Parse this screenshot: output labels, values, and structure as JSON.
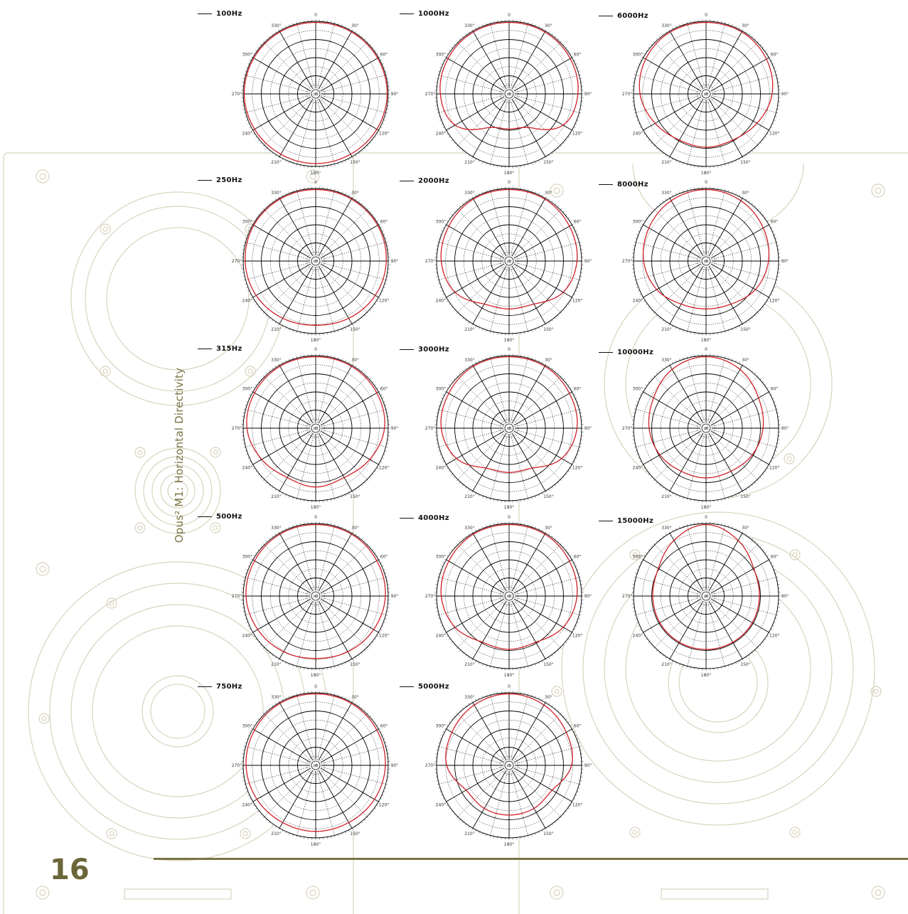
{
  "document": {
    "side_title": "Opus² M1: Horizontal Directivity",
    "page_number": "16"
  },
  "colors": {
    "response_curve": "#d0202a",
    "grid": "#000000",
    "background_drawing": "#d8d3bd",
    "accent": "#7a7445"
  },
  "polar_axis": {
    "angle_labels": [
      "0",
      "30°",
      "60°",
      "90°",
      "120°",
      "150°",
      "180°",
      "210°",
      "240°",
      "270°",
      "300°",
      "330°"
    ],
    "center_label": "dB"
  },
  "plots": [
    {
      "label": "100Hz"
    },
    {
      "label": "250Hz"
    },
    {
      "label": "315Hz"
    },
    {
      "label": "500Hz"
    },
    {
      "label": "750Hz"
    },
    {
      "label": "1000Hz"
    },
    {
      "label": "2000Hz"
    },
    {
      "label": "3000Hz"
    },
    {
      "label": "4000Hz"
    },
    {
      "label": "5000Hz"
    },
    {
      "label": "6000Hz"
    },
    {
      "label": "8000Hz"
    },
    {
      "label": "10000Hz"
    },
    {
      "label": "15000Hz"
    }
  ],
  "chart_data": [
    {
      "type": "polar",
      "title": "100Hz",
      "angles_deg": [
        0,
        30,
        60,
        90,
        120,
        150,
        180,
        210,
        240,
        270,
        300,
        330
      ],
      "values": [
        0,
        0,
        0,
        0,
        -0.5,
        -1,
        -1,
        -1,
        -0.5,
        0,
        0,
        0
      ]
    },
    {
      "type": "polar",
      "title": "250Hz",
      "angles_deg": [
        0,
        30,
        60,
        90,
        120,
        150,
        180,
        210,
        240,
        270,
        300,
        330
      ],
      "values": [
        0,
        0,
        0,
        -0.5,
        -1.5,
        -3,
        -4,
        -3,
        -1.5,
        -0.5,
        0,
        0
      ]
    },
    {
      "type": "polar",
      "title": "315Hz",
      "angles_deg": [
        0,
        30,
        60,
        90,
        120,
        150,
        180,
        210,
        240,
        270,
        300,
        330
      ],
      "values": [
        0,
        0,
        -0.5,
        -1.5,
        -5,
        -8,
        -7,
        -8,
        -5,
        -1.5,
        -0.5,
        0
      ]
    },
    {
      "type": "polar",
      "title": "500Hz",
      "angles_deg": [
        0,
        30,
        60,
        90,
        120,
        150,
        180,
        210,
        240,
        270,
        300,
        330
      ],
      "values": [
        0,
        0,
        -0.5,
        -1,
        -2.5,
        -4,
        -5,
        -4,
        -2.5,
        -1,
        -0.5,
        0
      ]
    },
    {
      "type": "polar",
      "title": "750Hz",
      "angles_deg": [
        0,
        30,
        60,
        90,
        120,
        150,
        180,
        210,
        240,
        270,
        300,
        330
      ],
      "values": [
        0,
        0,
        -0.5,
        -1,
        -2,
        -3,
        -3,
        -3,
        -2,
        -1,
        -0.5,
        0
      ]
    },
    {
      "type": "polar",
      "title": "1000Hz",
      "angles_deg": [
        0,
        30,
        60,
        90,
        120,
        150,
        180,
        210,
        240,
        270,
        300,
        330
      ],
      "values": [
        0,
        0,
        -0.5,
        -1.5,
        -5,
        -18,
        -20,
        -18,
        -5,
        -1.5,
        -0.5,
        0
      ]
    },
    {
      "type": "polar",
      "title": "2000Hz",
      "angles_deg": [
        0,
        30,
        60,
        90,
        120,
        150,
        180,
        210,
        240,
        270,
        300,
        330
      ],
      "values": [
        0,
        0,
        -1,
        -2,
        -5,
        -12,
        -13,
        -12,
        -5,
        -2,
        -1,
        0
      ]
    },
    {
      "type": "polar",
      "title": "3000Hz",
      "angles_deg": [
        0,
        30,
        60,
        90,
        120,
        150,
        180,
        210,
        240,
        270,
        300,
        330
      ],
      "values": [
        0,
        0,
        -1,
        -2,
        -6,
        -14,
        -15,
        -14,
        -6,
        -2,
        -1,
        0
      ]
    },
    {
      "type": "polar",
      "title": "4000Hz",
      "angles_deg": [
        0,
        30,
        60,
        90,
        120,
        150,
        180,
        210,
        240,
        270,
        300,
        330
      ],
      "values": [
        0,
        0,
        -1,
        -2,
        -5,
        -10,
        -10,
        -10,
        -5,
        -2,
        -1,
        0
      ]
    },
    {
      "type": "polar",
      "title": "5000Hz",
      "angles_deg": [
        0,
        30,
        60,
        90,
        120,
        150,
        180,
        210,
        240,
        270,
        300,
        330
      ],
      "values": [
        0,
        -1,
        -3,
        -5,
        -12,
        -12,
        -12,
        -12,
        -12,
        -5,
        -3,
        -1
      ]
    },
    {
      "type": "polar",
      "title": "6000Hz",
      "angles_deg": [
        0,
        30,
        60,
        90,
        120,
        150,
        180,
        210,
        240,
        270,
        300,
        330
      ],
      "values": [
        0,
        0,
        -1,
        -3,
        -7,
        -10,
        -10,
        -10,
        -7,
        -3,
        -1,
        0
      ]
    },
    {
      "type": "polar",
      "title": "8000Hz",
      "angles_deg": [
        0,
        30,
        60,
        90,
        120,
        150,
        180,
        210,
        240,
        270,
        300,
        330
      ],
      "values": [
        0,
        -1,
        -3,
        -5,
        -8,
        -12,
        -13,
        -12,
        -8,
        -5,
        -3,
        -1
      ]
    },
    {
      "type": "polar",
      "title": "10000Hz",
      "angles_deg": [
        0,
        30,
        60,
        90,
        120,
        150,
        180,
        210,
        240,
        270,
        300,
        330
      ],
      "values": [
        0,
        -2,
        -6,
        -8,
        -10,
        -12,
        -12,
        -12,
        -10,
        -8,
        -6,
        -2
      ]
    },
    {
      "type": "polar",
      "title": "15000Hz",
      "angles_deg": [
        0,
        30,
        60,
        90,
        120,
        150,
        180,
        210,
        240,
        270,
        300,
        330
      ],
      "values": [
        0,
        -4,
        -9,
        -10,
        -10,
        -10,
        -10,
        -10,
        -10,
        -10,
        -9,
        -4
      ]
    }
  ]
}
